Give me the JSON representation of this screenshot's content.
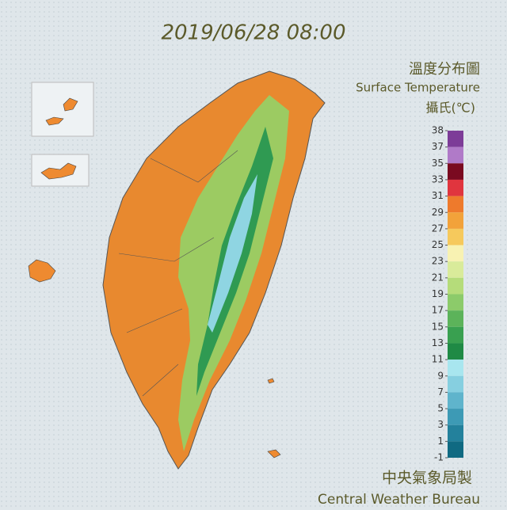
{
  "header": {
    "timestamp": "2019/06/28 08:00",
    "title": "溫度分布圖",
    "subtitle": "Surface Temperature",
    "unit": "攝氏(℃)"
  },
  "legend": {
    "ticks": [
      38,
      37,
      35,
      33,
      31,
      29,
      27,
      25,
      23,
      21,
      19,
      17,
      15,
      13,
      11,
      9,
      7,
      5,
      3,
      1,
      -1
    ],
    "colors": [
      "#7d3c98",
      "#b07ac8",
      "#7a0a20",
      "#e0353e",
      "#ee7a2c",
      "#f2a23a",
      "#f6c95c",
      "#f8f2b2",
      "#d9eb9a",
      "#b5dc7a",
      "#8ccb6a",
      "#5cb35a",
      "#39a050",
      "#1f8a45",
      "#a8e6ef",
      "#86cfe0",
      "#5fb4cc",
      "#3d9ab5",
      "#23819c",
      "#106a82"
    ]
  },
  "footer": {
    "agency": "中央氣象局製",
    "agency_en": "Central Weather Bureau"
  }
}
